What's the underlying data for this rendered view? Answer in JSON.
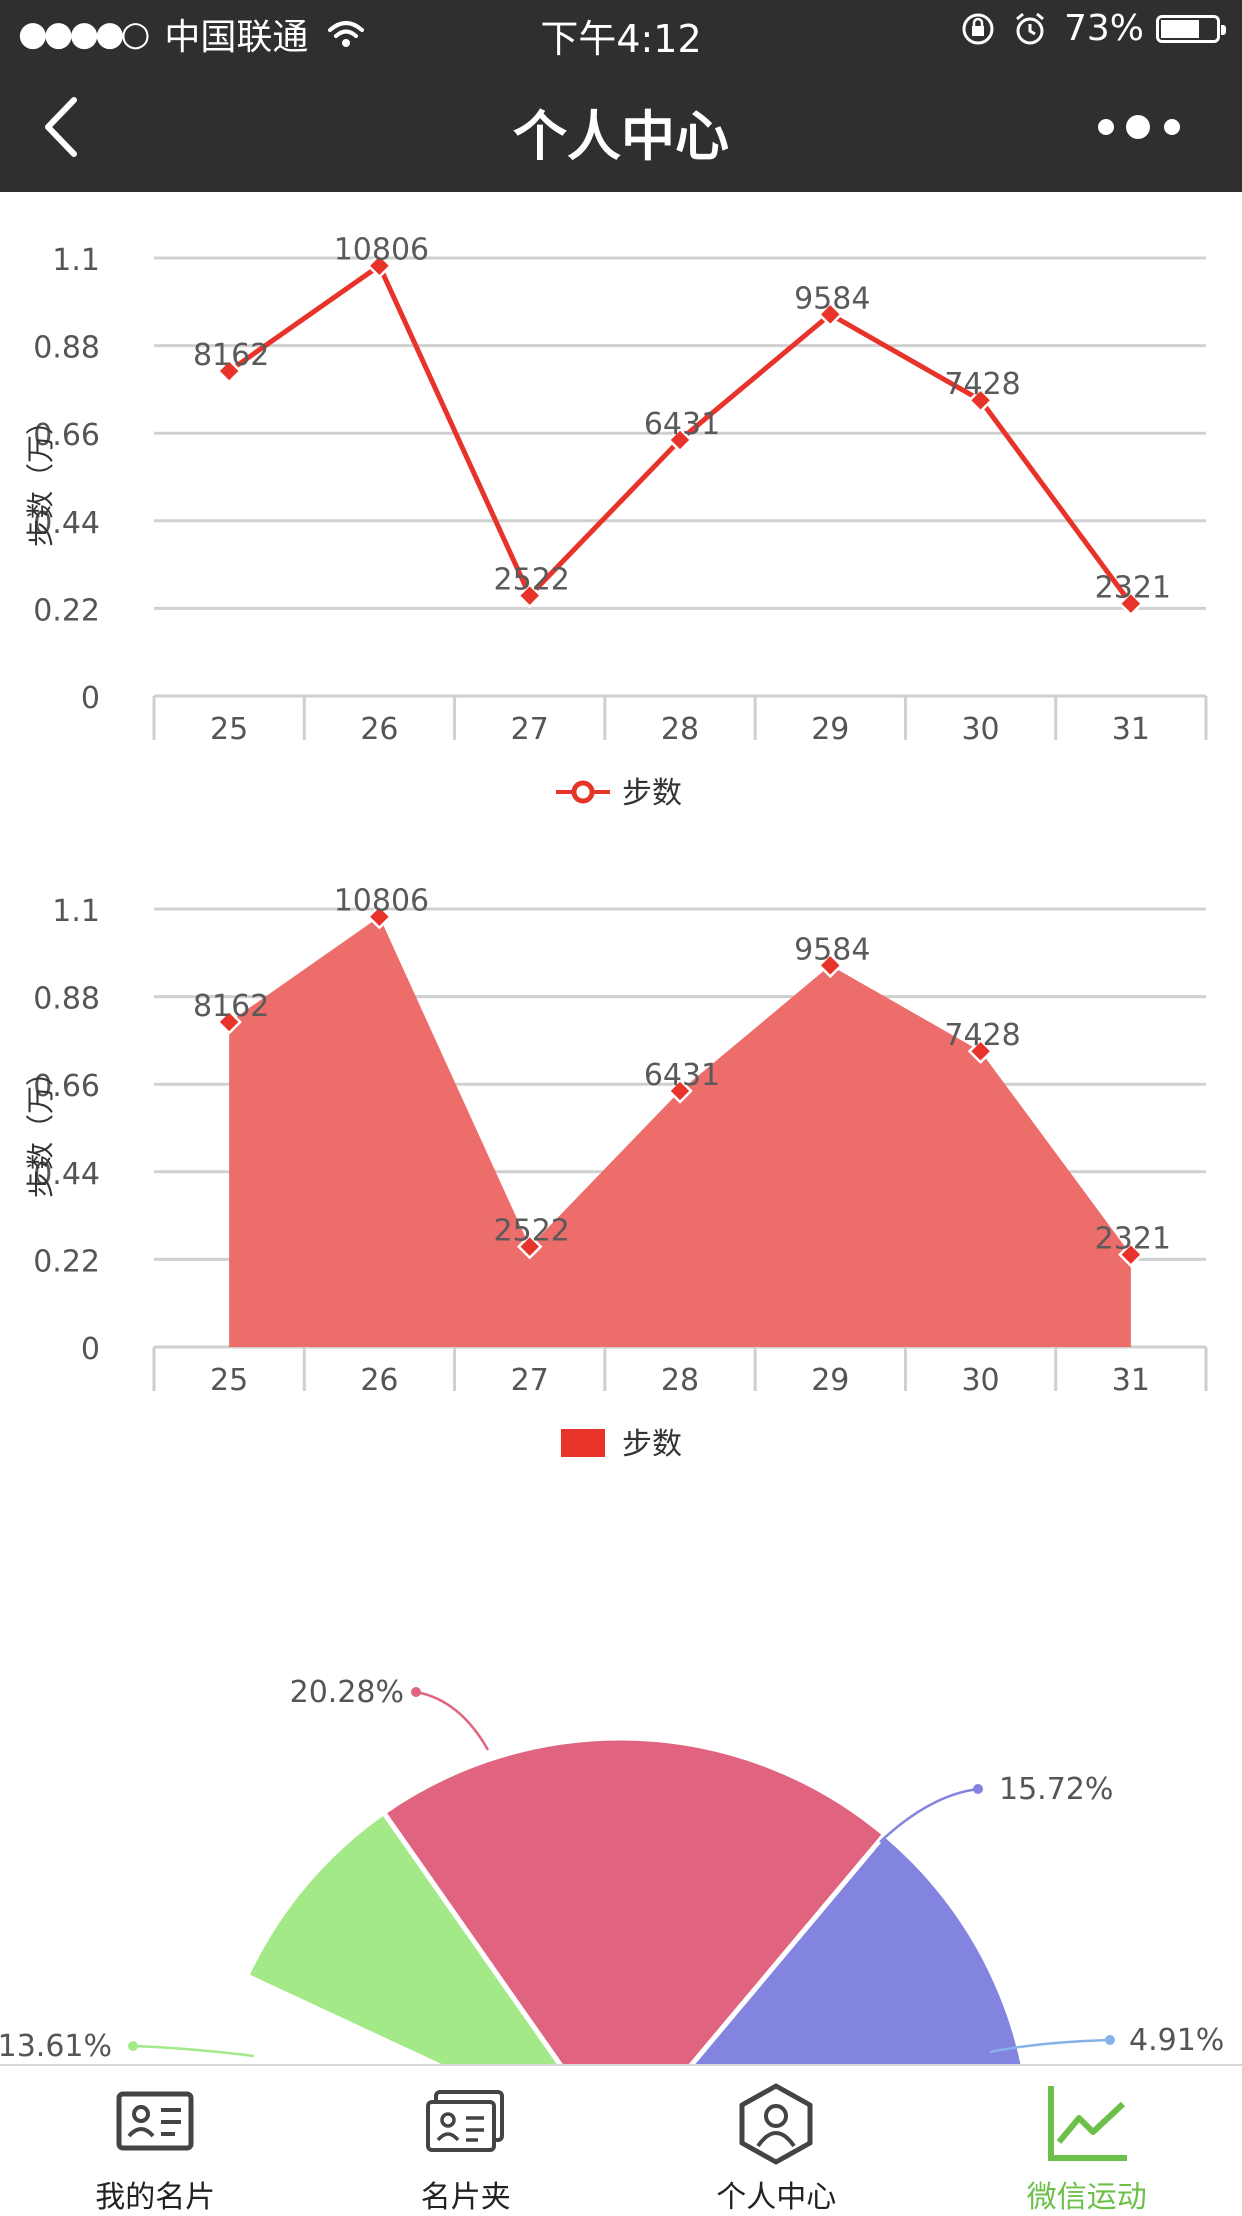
{
  "status_bar": {
    "signal": "●●●●○",
    "carrier": "中国联通",
    "time": "下午4:12",
    "battery": "73%",
    "battery_level": 0.73
  },
  "nav": {
    "title": "个人中心"
  },
  "chart_data": [
    {
      "type": "line",
      "categories": [
        "25",
        "26",
        "27",
        "28",
        "29",
        "30",
        "31"
      ],
      "series": [
        {
          "name": "步数",
          "values": [
            8162,
            10806,
            2522,
            6431,
            9584,
            7428,
            2321
          ]
        }
      ],
      "ylabel": "步数（万）",
      "yticks": [
        "0",
        "0.22",
        "0.44",
        "0.66",
        "0.88",
        "1.1"
      ],
      "ylim": [
        0,
        1.1
      ],
      "color": "#e8332a",
      "legend": "bottom",
      "grid": true
    },
    {
      "type": "area",
      "categories": [
        "25",
        "26",
        "27",
        "28",
        "29",
        "30",
        "31"
      ],
      "series": [
        {
          "name": "步数",
          "values": [
            8162,
            10806,
            2522,
            6431,
            9584,
            7428,
            2321
          ]
        }
      ],
      "ylabel": "步数（万）",
      "yticks": [
        "0",
        "0.22",
        "0.44",
        "0.66",
        "0.88",
        "1.1"
      ],
      "ylim": [
        0,
        1.1
      ],
      "color": "#e8332a",
      "fill_color": "#ed6d6a",
      "legend": "bottom",
      "grid": true
    },
    {
      "type": "pie",
      "slices": [
        {
          "label": "20.28%",
          "value": 20.28,
          "color": "#e06480"
        },
        {
          "label": "15.72%",
          "value": 15.72,
          "color": "#8284e0"
        },
        {
          "label": "4.91%",
          "value": 4.91,
          "color": "#86b2e8"
        },
        {
          "label": "13.61%",
          "value": 13.61,
          "color": "#a4e987"
        }
      ]
    }
  ],
  "tabbar": {
    "items": [
      {
        "label": "我的名片",
        "icon": "id-card-icon"
      },
      {
        "label": "名片夹",
        "icon": "card-holder-icon"
      },
      {
        "label": "个人中心",
        "icon": "user-hexagon-icon"
      },
      {
        "label": "微信运动",
        "icon": "trend-chart-icon",
        "active": true
      }
    ],
    "active_color": "#6cbf49"
  }
}
